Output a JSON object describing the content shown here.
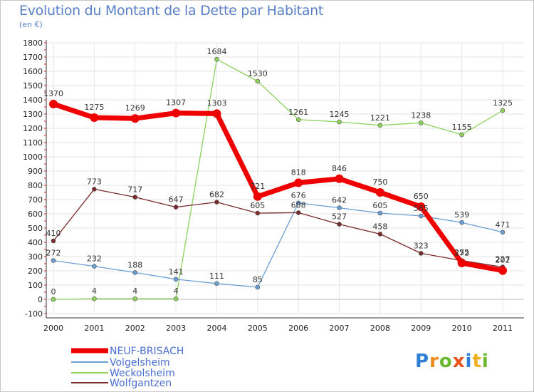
{
  "title": "Evolution du Montant de la Dette par Habitant",
  "unit": "(en €)",
  "logo": {
    "letters": [
      "P",
      "r",
      "o",
      "x",
      "i",
      "t",
      "i"
    ],
    "colors": [
      "#2e7fd8",
      "#f08a1c",
      "#6ab82e",
      "#e8501c",
      "#2e7fd8",
      "#f0b01c",
      "#6ab82e"
    ]
  },
  "chart_data": {
    "type": "line",
    "x": [
      "2000",
      "2001",
      "2002",
      "2003",
      "2004",
      "2005",
      "2006",
      "2007",
      "2008",
      "2009",
      "2010",
      "2011"
    ],
    "yticks": [
      -100,
      0,
      100,
      200,
      300,
      400,
      500,
      600,
      700,
      800,
      900,
      1000,
      1100,
      1200,
      1300,
      1400,
      1500,
      1600,
      1700,
      1800
    ],
    "ylim": [
      -100,
      1800
    ],
    "grid": true,
    "legend_position": "bottom-left",
    "series": [
      {
        "name": "NEUF-BRISACH",
        "color": "#ee0000",
        "width": 7,
        "marker": 6,
        "values": [
          1370,
          1275,
          1269,
          1307,
          1303,
          721,
          818,
          846,
          750,
          650,
          255,
          202
        ],
        "labels": [
          "1370",
          "1275",
          "1269",
          "1307",
          "1303",
          "721",
          "818",
          "846",
          "750",
          "650",
          "255",
          "202"
        ]
      },
      {
        "name": "Volgelsheim",
        "color": "#6a9fd4",
        "width": 1.3,
        "marker": 3,
        "values": [
          272,
          232,
          188,
          141,
          111,
          85,
          676,
          642,
          605,
          585,
          539,
          471
        ],
        "labels": [
          "272",
          "232",
          "188",
          "141",
          "111",
          "85",
          "676",
          "642",
          "605",
          "585",
          "539",
          "471"
        ]
      },
      {
        "name": "Weckolsheim",
        "color": "#8cd25a",
        "width": 1.3,
        "marker": 3,
        "values": [
          0,
          4,
          4,
          4,
          1684,
          1530,
          1261,
          1245,
          1221,
          1238,
          1155,
          1325
        ],
        "labels": [
          "0",
          "4",
          "4",
          "4",
          "1684",
          "1530",
          "1261",
          "1245",
          "1221",
          "1238",
          "1155",
          "1325"
        ]
      },
      {
        "name": "Wolfgantzen",
        "color": "#7a2a2a",
        "width": 1.3,
        "marker": 3,
        "values": [
          410,
          773,
          717,
          647,
          682,
          605,
          608,
          527,
          458,
          323,
          272,
          227
        ],
        "labels": [
          "410",
          "773",
          "717",
          "647",
          "682",
          "605",
          "608",
          "527",
          "458",
          "323",
          "272",
          "227"
        ]
      }
    ]
  }
}
